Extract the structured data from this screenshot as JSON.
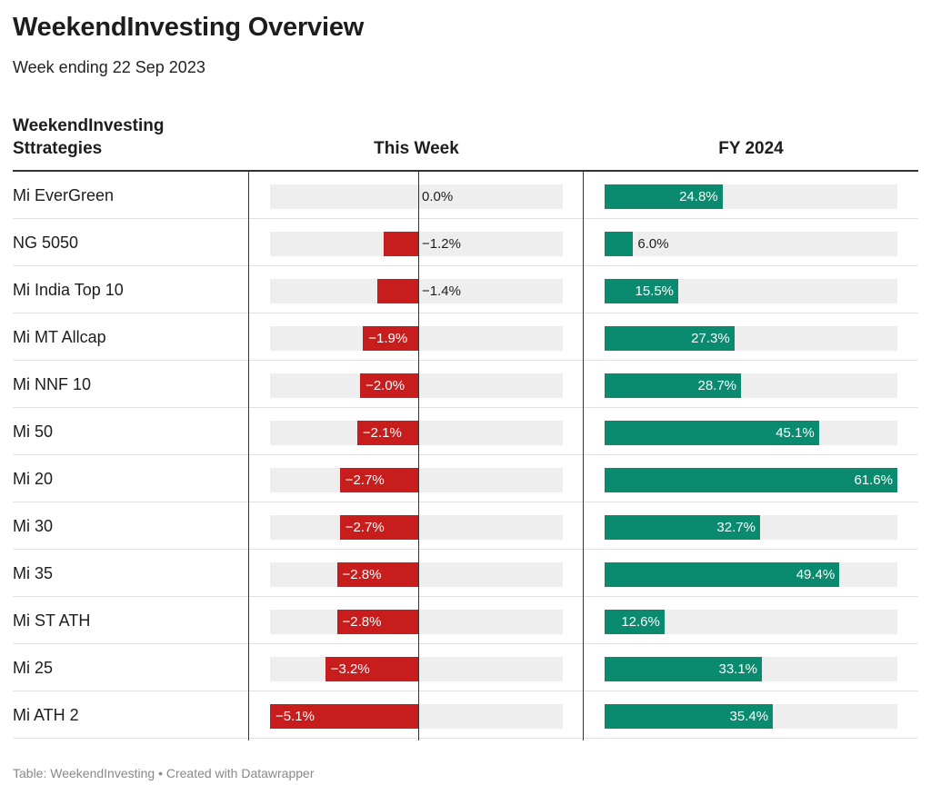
{
  "title": "WeekendInvesting Overview",
  "subtitle": "Week ending 22 Sep 2023",
  "headers": {
    "name_line1": "WeekendInvesting",
    "name_line2": "Sttrategies",
    "this_week": "This Week",
    "fy": "FY 2024"
  },
  "footer": "Table: WeekendInvesting • Created with Datawrapper",
  "colors": {
    "negative": "#c71e1d",
    "positive": "#0a8a6e",
    "bar_bg": "#eeeeee"
  },
  "chart_data": {
    "type": "table",
    "columns": [
      "WeekendInvesting Sttrategies",
      "This Week",
      "FY 2024"
    ],
    "this_week_range": [
      -5.1,
      5.1
    ],
    "fy_range": [
      0,
      61.6
    ],
    "rows": [
      {
        "name": "Mi EverGreen",
        "this_week": 0.0,
        "this_week_label": "0.0%",
        "fy": 24.8,
        "fy_label": "24.8%"
      },
      {
        "name": "NG 5050",
        "this_week": -1.2,
        "this_week_label": "−1.2%",
        "fy": 6.0,
        "fy_label": "6.0%"
      },
      {
        "name": "Mi India Top 10",
        "this_week": -1.4,
        "this_week_label": "−1.4%",
        "fy": 15.5,
        "fy_label": "15.5%"
      },
      {
        "name": "Mi MT Allcap",
        "this_week": -1.9,
        "this_week_label": "−1.9%",
        "fy": 27.3,
        "fy_label": "27.3%"
      },
      {
        "name": "Mi NNF 10",
        "this_week": -2.0,
        "this_week_label": "−2.0%",
        "fy": 28.7,
        "fy_label": "28.7%"
      },
      {
        "name": "Mi 50",
        "this_week": -2.1,
        "this_week_label": "−2.1%",
        "fy": 45.1,
        "fy_label": "45.1%"
      },
      {
        "name": "Mi 20",
        "this_week": -2.7,
        "this_week_label": "−2.7%",
        "fy": 61.6,
        "fy_label": "61.6%"
      },
      {
        "name": "Mi 30",
        "this_week": -2.7,
        "this_week_label": "−2.7%",
        "fy": 32.7,
        "fy_label": "32.7%"
      },
      {
        "name": "Mi 35",
        "this_week": -2.8,
        "this_week_label": "−2.8%",
        "fy": 49.4,
        "fy_label": "49.4%"
      },
      {
        "name": "Mi ST ATH",
        "this_week": -2.8,
        "this_week_label": "−2.8%",
        "fy": 12.6,
        "fy_label": "12.6%"
      },
      {
        "name": "Mi 25",
        "this_week": -3.2,
        "this_week_label": "−3.2%",
        "fy": 33.1,
        "fy_label": "33.1%"
      },
      {
        "name": "Mi ATH 2",
        "this_week": -5.1,
        "this_week_label": "−5.1%",
        "fy": 35.4,
        "fy_label": "35.4%"
      }
    ]
  }
}
